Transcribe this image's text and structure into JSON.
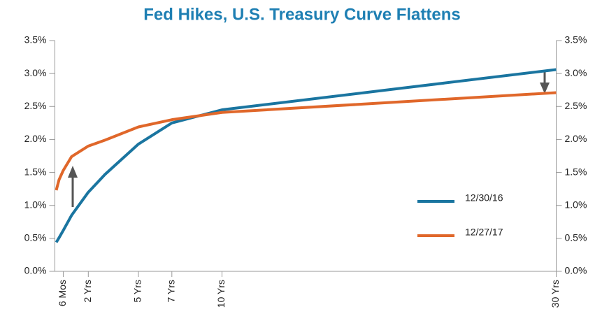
{
  "chart_data": {
    "type": "line",
    "title": "Fed Hikes, U.S. Treasury Curve Flattens",
    "x": [
      0.0833,
      0.25,
      0.5,
      1,
      2,
      3,
      5,
      7,
      10,
      30
    ],
    "xlim": [
      0,
      30
    ],
    "xticks": [
      {
        "value": 0.5,
        "label": "6 Mos"
      },
      {
        "value": 2,
        "label": "2 Yrs"
      },
      {
        "value": 5,
        "label": "5 Yrs"
      },
      {
        "value": 7,
        "label": "7 Yrs"
      },
      {
        "value": 10,
        "label": "10 Yrs"
      },
      {
        "value": 30,
        "label": "30 Yrs"
      }
    ],
    "ylim": [
      0,
      3.5
    ],
    "yticks": [
      {
        "value": 0,
        "label": "0.0%"
      },
      {
        "value": 0.5,
        "label": "0.5%"
      },
      {
        "value": 1,
        "label": "1.0%"
      },
      {
        "value": 1.5,
        "label": "1.5%"
      },
      {
        "value": 2,
        "label": "2.0%"
      },
      {
        "value": 2.5,
        "label": "2.5%"
      },
      {
        "value": 3,
        "label": "3.0%"
      },
      {
        "value": 3.5,
        "label": "3.5%"
      }
    ],
    "y2lim": [
      0,
      3.5
    ],
    "y2ticks": [
      {
        "value": 0,
        "label": "0.0%"
      },
      {
        "value": 0.5,
        "label": "0.5%"
      },
      {
        "value": 1,
        "label": "1.0%"
      },
      {
        "value": 1.5,
        "label": "1.5%"
      },
      {
        "value": 2,
        "label": "2.0%"
      },
      {
        "value": 2.5,
        "label": "2.5%"
      },
      {
        "value": 3,
        "label": "3.0%"
      },
      {
        "value": 3.5,
        "label": "3.5%"
      }
    ],
    "series": [
      {
        "name": "12/30/16",
        "color": "#1a75a0",
        "values": [
          0.44,
          0.51,
          0.62,
          0.85,
          1.2,
          1.47,
          1.93,
          2.25,
          2.45,
          3.06
        ]
      },
      {
        "name": "12/27/17",
        "color": "#e0672a",
        "values": [
          1.23,
          1.39,
          1.53,
          1.74,
          1.9,
          1.99,
          2.19,
          2.3,
          2.41,
          2.71
        ]
      }
    ]
  }
}
